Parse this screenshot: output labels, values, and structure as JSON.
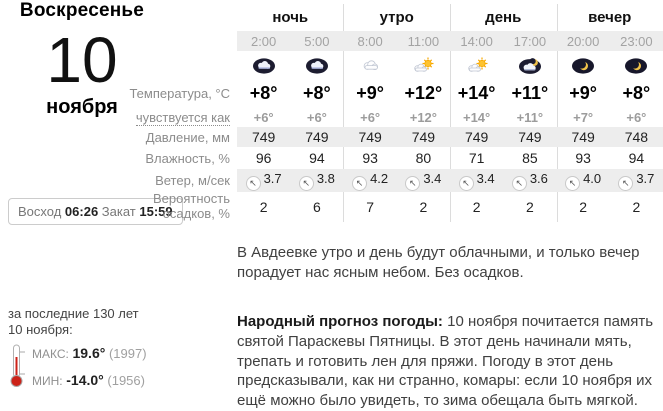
{
  "date": {
    "weekday": "Воскресенье",
    "day": "10",
    "month": "ноября"
  },
  "sun": {
    "sunrise_label": "Восход",
    "sunrise_time": "06:26",
    "sunset_label": "Закат",
    "sunset_time": "15:59"
  },
  "history": {
    "intro_line1": "за последние 130 лет",
    "intro_line2": "10 ноября:",
    "max": {
      "label": "МАКС:",
      "value": "19.6°",
      "year": "(1997)"
    },
    "min": {
      "label": "МИН:",
      "value": "-14.0°",
      "year": "(1956)"
    }
  },
  "groups": [
    {
      "label": "ночь"
    },
    {
      "label": "утро"
    },
    {
      "label": "день"
    },
    {
      "label": "вечер"
    }
  ],
  "row_labels": {
    "temperature": "Температура, °C",
    "feels": "чувствуется как",
    "pressure": "Давление, мм",
    "humidity": "Влажность, %",
    "wind": "Ветер, м/сек",
    "precip_line1": "Вероятность",
    "precip_line2": "осадков, %"
  },
  "columns": [
    {
      "time": "2:00",
      "icon": "night-overcast",
      "temp": "+8°",
      "feels": "+6°",
      "pressure": "749",
      "humidity": "96",
      "wind_dir": "↖",
      "wind": "3.7",
      "precip": "2"
    },
    {
      "time": "5:00",
      "icon": "night-overcast",
      "temp": "+8°",
      "feels": "+6°",
      "pressure": "749",
      "humidity": "94",
      "wind_dir": "↖",
      "wind": "3.8",
      "precip": "6"
    },
    {
      "time": "8:00",
      "icon": "cloudy",
      "temp": "+9°",
      "feels": "+6°",
      "pressure": "749",
      "humidity": "93",
      "wind_dir": "↖",
      "wind": "4.2",
      "precip": "7"
    },
    {
      "time": "11:00",
      "icon": "partly-sunny",
      "temp": "+12°",
      "feels": "+12°",
      "pressure": "749",
      "humidity": "80",
      "wind_dir": "↖",
      "wind": "3.4",
      "precip": "2"
    },
    {
      "time": "14:00",
      "icon": "partly-sunny",
      "temp": "+14°",
      "feels": "+14°",
      "pressure": "749",
      "humidity": "71",
      "wind_dir": "↖",
      "wind": "3.4",
      "precip": "2"
    },
    {
      "time": "17:00",
      "icon": "night-cloudy",
      "temp": "+11°",
      "feels": "+11°",
      "pressure": "749",
      "humidity": "85",
      "wind_dir": "↖",
      "wind": "3.6",
      "precip": "2"
    },
    {
      "time": "20:00",
      "icon": "moon",
      "temp": "+9°",
      "feels": "+7°",
      "pressure": "749",
      "humidity": "93",
      "wind_dir": "↖",
      "wind": "4.0",
      "precip": "2"
    },
    {
      "time": "23:00",
      "icon": "moon",
      "temp": "+8°",
      "feels": "+6°",
      "pressure": "748",
      "humidity": "94",
      "wind_dir": "↖",
      "wind": "3.7",
      "precip": "2"
    }
  ],
  "summary": "В Авдеевке утро и день будут облачными, и только вечер порадует нас ясным небом. Без осадков.",
  "folk": {
    "title": "Народный прогноз погоды:",
    "text": " 10 ноября почитается память святой Параскевы Пятницы. В этот день начинали мять, трепать и готовить лен для пряжи. Погоду в этот день предсказывали, как ни странно, комары: если 10 ноября их ещё можно было увидеть, то зима обещала быть мягкой."
  },
  "colors": {
    "row_band": "#ededed",
    "group_separator": "#dcdcdc",
    "sun_accent": "#f7a800",
    "moon_accent": "#f0c24a",
    "night_sky": "#1c1c30",
    "thermometer_red": "#cc2218"
  }
}
